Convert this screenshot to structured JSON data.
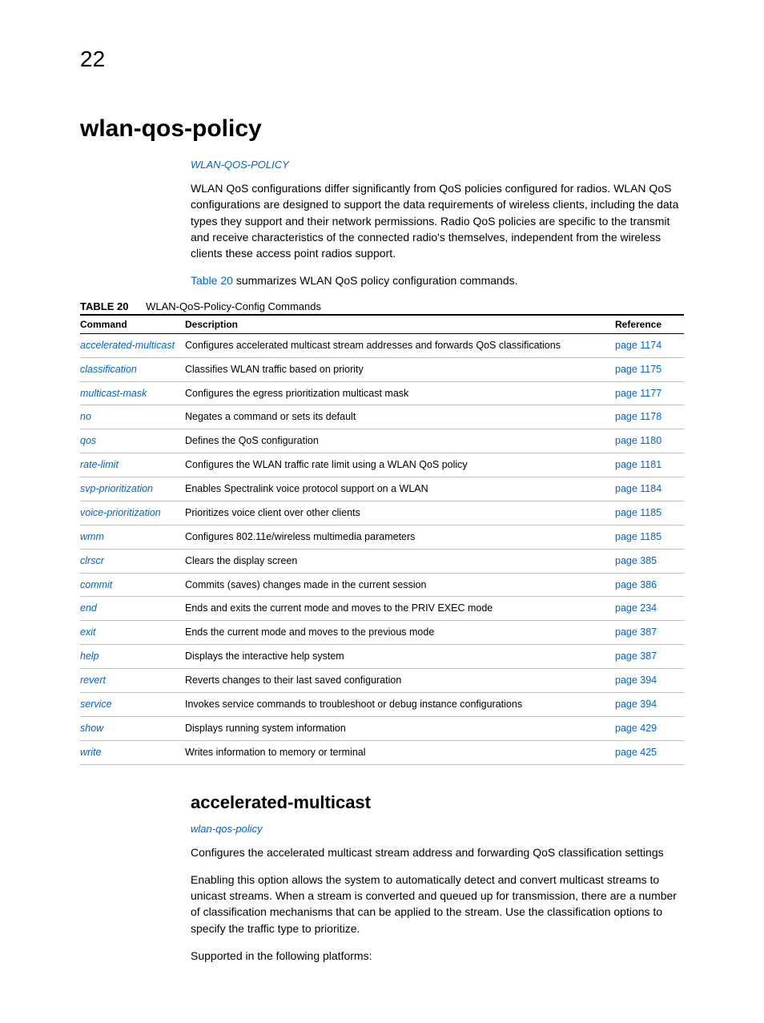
{
  "page_number": "22",
  "title": "wlan-qos-policy",
  "section_link_upper": "WLAN-QOS-POLICY",
  "intro_paragraph": "WLAN QoS configurations differ significantly from QoS policies configured for radios. WLAN QoS configurations are designed to support the data requirements of wireless clients, including the data types they support and their network permissions. Radio QoS policies are specific to the transmit and receive characteristics of the connected radio's themselves, independent from the wireless clients these access point radios support.",
  "summary_prefix": "Table 20",
  "summary_suffix": " summarizes WLAN QoS policy configuration commands.",
  "table_caption_label": "TABLE 20",
  "table_caption_text": "WLAN-QoS-Policy-Config Commands",
  "table": {
    "headers": {
      "command": "Command",
      "description": "Description",
      "reference": "Reference"
    },
    "rows": [
      {
        "command": "accelerated-multicast",
        "description": "Configures accelerated multicast stream addresses and forwards QoS classifications",
        "reference": "page 1174"
      },
      {
        "command": "classification",
        "description": "Classifies WLAN traffic based on priority",
        "reference": "page 1175"
      },
      {
        "command": "multicast-mask",
        "description": "Configures the egress prioritization multicast mask",
        "reference": "page 1177"
      },
      {
        "command": "no",
        "description": "Negates a command or sets its default",
        "reference": "page 1178"
      },
      {
        "command": "qos",
        "description": "Defines the QoS configuration",
        "reference": "page 1180"
      },
      {
        "command": "rate-limit",
        "description": "Configures the WLAN traffic rate limit using a WLAN QoS policy",
        "reference": "page 1181"
      },
      {
        "command": "svp-prioritization",
        "description": "Enables Spectralink voice protocol support on a WLAN",
        "reference": "page 1184"
      },
      {
        "command": "voice-prioritization",
        "description": "Prioritizes voice client over other clients",
        "reference": "page 1185"
      },
      {
        "command": "wmm",
        "description": "Configures 802.11e/wireless multimedia parameters",
        "reference": "page 1185"
      },
      {
        "command": "clrscr",
        "description": "Clears the display screen",
        "reference": "page 385"
      },
      {
        "command": "commit",
        "description": "Commits (saves) changes made in the current session",
        "reference": "page 386"
      },
      {
        "command": "end",
        "description": "Ends and exits the current mode and moves to the PRIV EXEC mode",
        "reference": "page 234"
      },
      {
        "command": "exit",
        "description": "Ends the current mode and moves to the previous mode",
        "reference": "page 387"
      },
      {
        "command": "help",
        "description": "Displays the interactive help system",
        "reference": "page 387"
      },
      {
        "command": "revert",
        "description": "Reverts changes to their last saved configuration",
        "reference": "page 394"
      },
      {
        "command": "service",
        "description": "Invokes service commands to troubleshoot or debug                                     instance configurations",
        "reference": "page 394"
      },
      {
        "command": "show",
        "description": "Displays running system information",
        "reference": "page 429"
      },
      {
        "command": "write",
        "description": "Writes information to memory or terminal",
        "reference": "page 425"
      }
    ]
  },
  "sub_section": {
    "title": "accelerated-multicast",
    "link": "wlan-qos-policy",
    "para1": "Configures the accelerated multicast stream address and forwarding QoS classification settings",
    "para2": "Enabling this option allows the system to automatically detect and convert multicast streams to unicast streams. When a stream is converted and queued up for transmission, there are a number of classification mechanisms that can be applied to the stream. Use the classification options to specify the traffic type to prioritize.",
    "para3": "Supported in the following platforms:"
  },
  "colors": {
    "link": "#0066cc",
    "text": "#000000",
    "rule_heavy": "#000000",
    "rule_light": "#bfbfbf",
    "background": "#ffffff"
  }
}
